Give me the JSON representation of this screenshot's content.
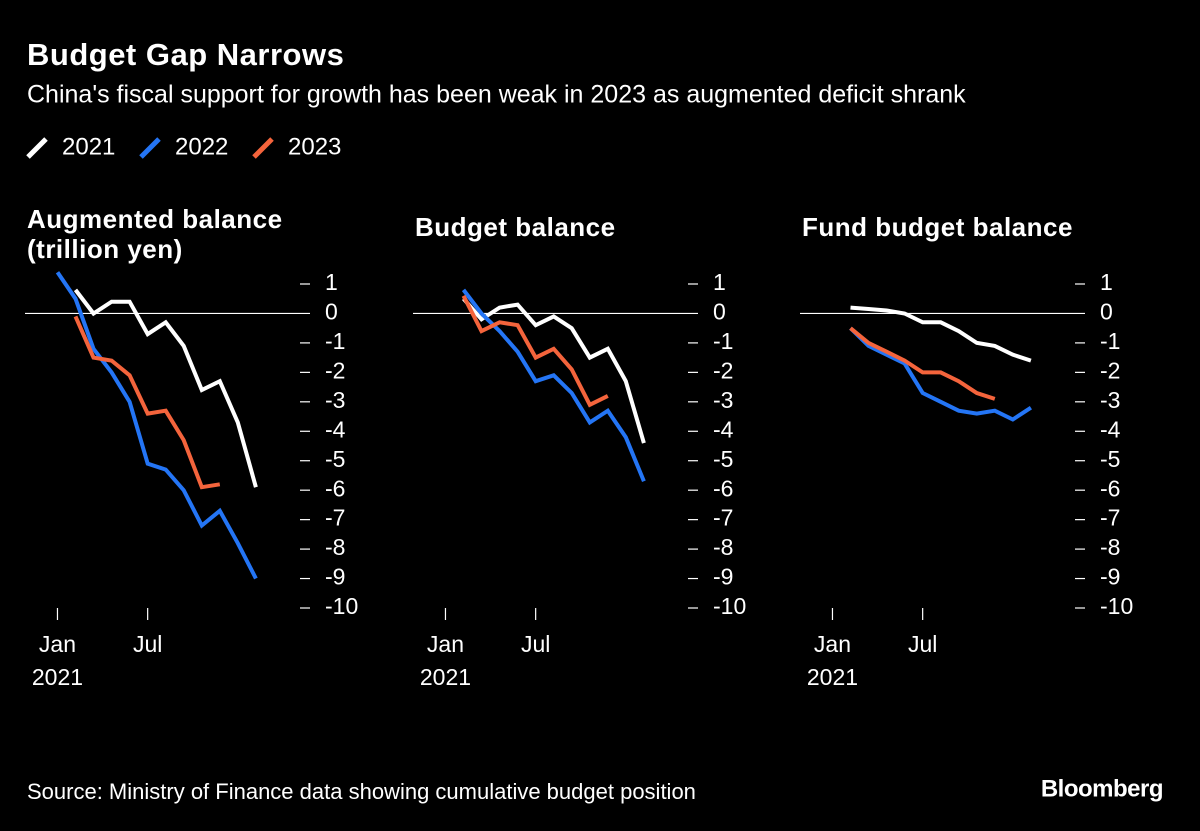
{
  "title": "Budget Gap Narrows",
  "subtitle": "China's fiscal support for growth has been weak in 2023 as augmented deficit shrank",
  "source": "Source: Ministry of Finance data showing cumulative budget position",
  "brand": "Bloomberg",
  "chart_data": [
    {
      "type": "line",
      "title": "Augmented balance (trillion yen)",
      "xlim": [
        -0.8,
        15
      ],
      "ylim": [
        -10,
        1
      ],
      "xticks": [
        {
          "value": 1,
          "label": "Jan 2021"
        },
        {
          "value": 6,
          "label": "Jul"
        }
      ],
      "yticks": [
        1,
        0,
        -1,
        -2,
        -3,
        -4,
        -5,
        -6,
        -7,
        -8,
        -9,
        -10
      ],
      "zero_line": true,
      "series": [
        {
          "name": "2021",
          "color": "#ffffff",
          "x": [
            2,
            3,
            4,
            5,
            6,
            7,
            8,
            9,
            10,
            11,
            12
          ],
          "values": [
            0.8,
            0,
            0.4,
            0.4,
            -0.7,
            -0.3,
            -1.1,
            -2.6,
            -2.3,
            -3.7,
            -5.9
          ]
        },
        {
          "name": "2022",
          "color": "#2475f5",
          "x": [
            1,
            2,
            3,
            4,
            5,
            6,
            7,
            8,
            9,
            10,
            11,
            12
          ],
          "values": [
            1.4,
            0.5,
            -1.2,
            -2.0,
            -3.0,
            -5.1,
            -5.3,
            -6.0,
            -7.2,
            -6.7,
            -7.8,
            -9.0
          ]
        },
        {
          "name": "2023",
          "color": "#f4643c",
          "x": [
            2,
            3,
            4,
            5,
            6,
            7,
            8,
            9,
            10
          ],
          "values": [
            -0.1,
            -1.5,
            -1.6,
            -2.1,
            -3.4,
            -3.3,
            -4.3,
            -5.9,
            -5.8
          ]
        }
      ]
    },
    {
      "type": "line",
      "title": "Budget balance",
      "xlim": [
        -0.8,
        15
      ],
      "ylim": [
        -10,
        1
      ],
      "xticks": [
        {
          "value": 1,
          "label": "Jan 2021"
        },
        {
          "value": 6,
          "label": "Jul"
        }
      ],
      "yticks": [
        1,
        0,
        -1,
        -2,
        -3,
        -4,
        -5,
        -6,
        -7,
        -8,
        -9,
        -10
      ],
      "zero_line": true,
      "series": [
        {
          "name": "2021",
          "color": "#ffffff",
          "x": [
            2,
            3,
            4,
            5,
            6,
            7,
            8,
            9,
            10,
            11,
            12
          ],
          "values": [
            0.5,
            -0.2,
            0.2,
            0.3,
            -0.4,
            -0.1,
            -0.5,
            -1.5,
            -1.2,
            -2.3,
            -4.4
          ]
        },
        {
          "name": "2022",
          "color": "#2475f5",
          "x": [
            2,
            3,
            4,
            5,
            6,
            7,
            8,
            9,
            10,
            11,
            12
          ],
          "values": [
            0.8,
            0,
            -0.6,
            -1.3,
            -2.3,
            -2.1,
            -2.7,
            -3.7,
            -3.3,
            -4.2,
            -5.7
          ]
        },
        {
          "name": "2023",
          "color": "#f4643c",
          "x": [
            2,
            3,
            4,
            5,
            6,
            7,
            8,
            9,
            10
          ],
          "values": [
            0.6,
            -0.6,
            -0.3,
            -0.4,
            -1.5,
            -1.2,
            -1.9,
            -3.1,
            -2.8
          ]
        }
      ]
    },
    {
      "type": "line",
      "title": "Fund budget balance",
      "xlim": [
        -0.8,
        15
      ],
      "ylim": [
        -10,
        1
      ],
      "xticks": [
        {
          "value": 1,
          "label": "Jan 2021"
        },
        {
          "value": 6,
          "label": "Jul"
        }
      ],
      "yticks": [
        1,
        0,
        -1,
        -2,
        -3,
        -4,
        -5,
        -6,
        -7,
        -8,
        -9,
        -10
      ],
      "zero_line": true,
      "series": [
        {
          "name": "2021",
          "color": "#ffffff",
          "x": [
            2,
            3,
            4,
            5,
            6,
            7,
            8,
            9,
            10,
            11,
            12
          ],
          "values": [
            0.2,
            0.15,
            0.1,
            0,
            -0.3,
            -0.3,
            -0.6,
            -1.0,
            -1.1,
            -1.4,
            -1.6
          ]
        },
        {
          "name": "2022",
          "color": "#2475f5",
          "x": [
            2,
            3,
            4,
            5,
            6,
            7,
            8,
            9,
            10,
            11,
            12
          ],
          "values": [
            -0.5,
            -1.1,
            -1.4,
            -1.7,
            -2.7,
            -3.0,
            -3.3,
            -3.4,
            -3.3,
            -3.6,
            -3.2
          ]
        },
        {
          "name": "2023",
          "color": "#f4643c",
          "x": [
            2,
            3,
            4,
            5,
            6,
            7,
            8,
            9,
            10
          ],
          "values": [
            -0.5,
            -1.0,
            -1.3,
            -1.6,
            -2.0,
            -2.0,
            -2.3,
            -2.7,
            -2.9
          ]
        }
      ]
    }
  ]
}
